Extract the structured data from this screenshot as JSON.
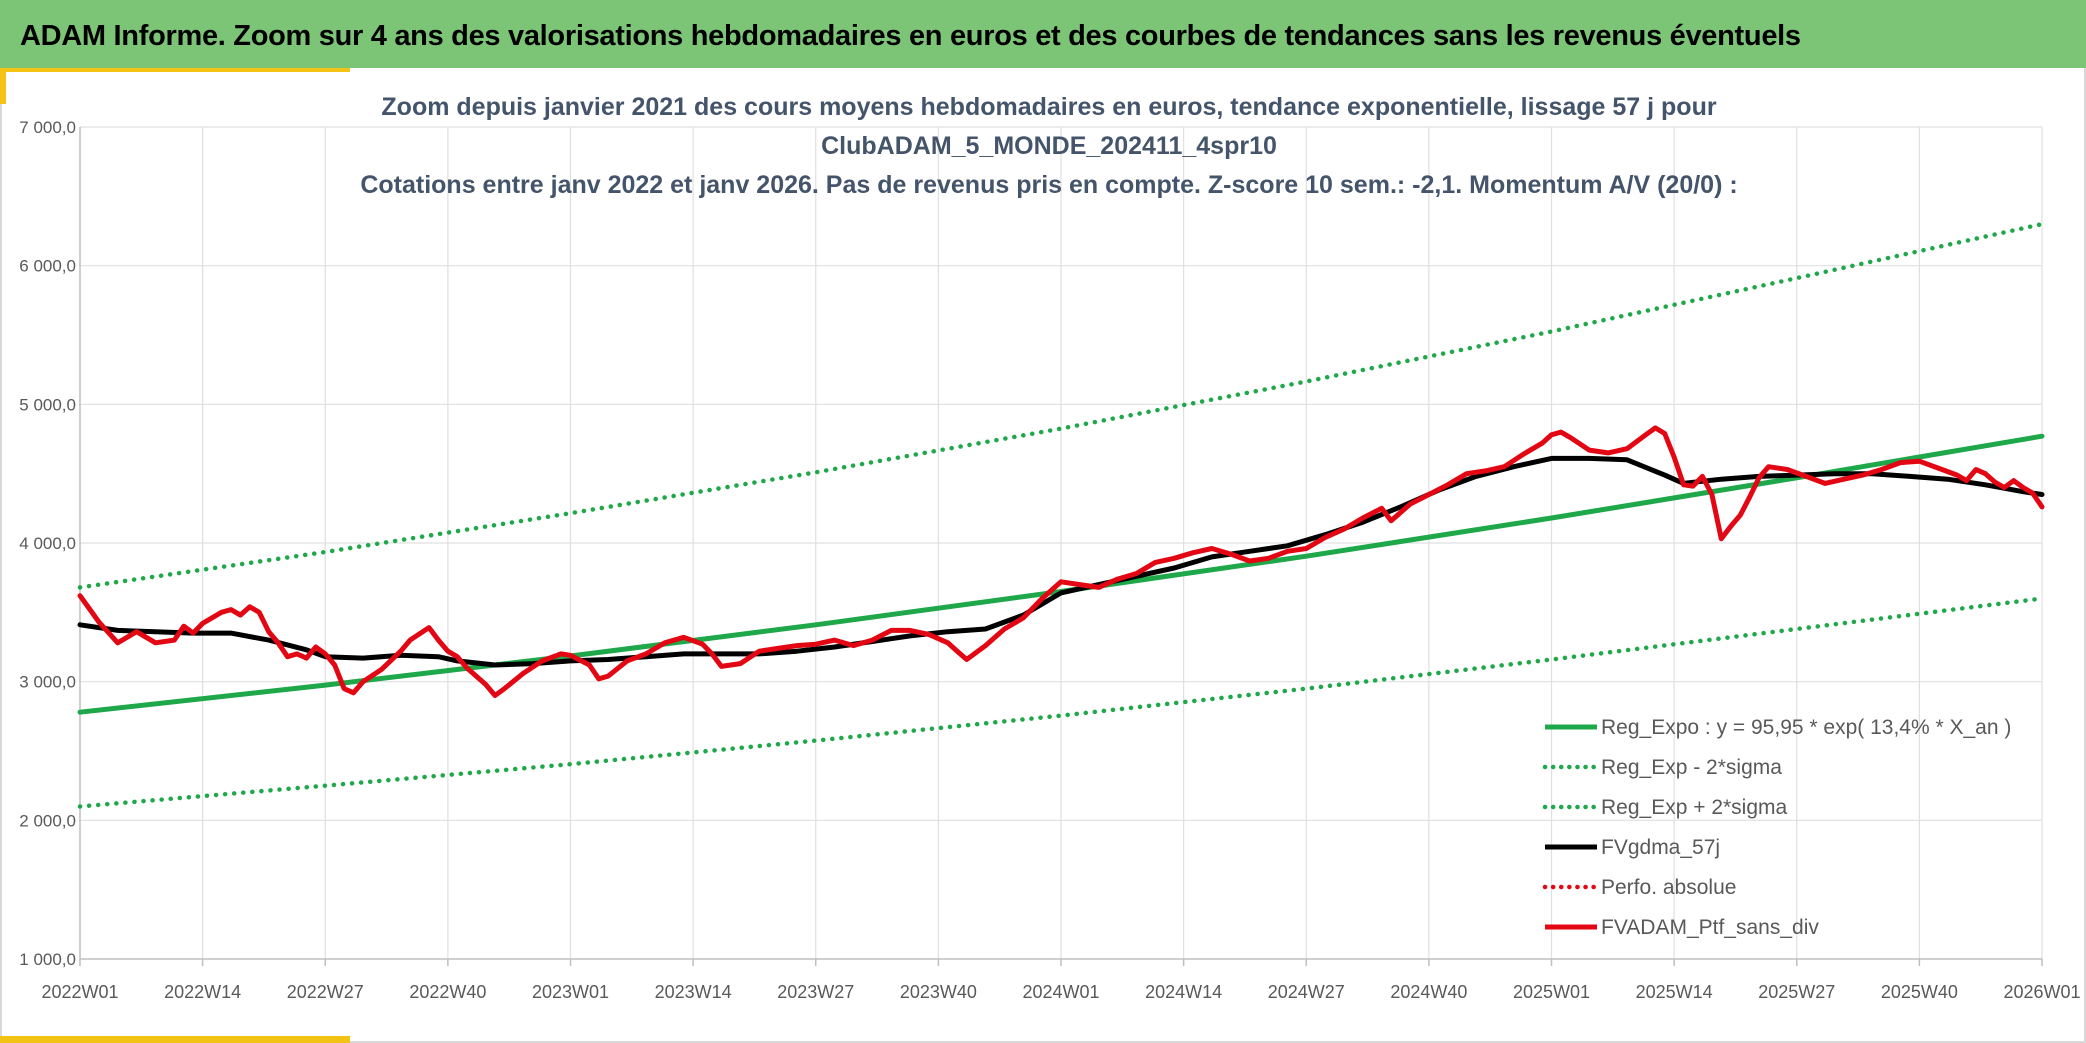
{
  "header": {
    "title": "ADAM Informe. Zoom sur 4 ans des valorisations hebdomadaires en euros et des courbes de tendances sans les revenus éventuels"
  },
  "colors": {
    "header_bg": "#7cc576",
    "accent": "#f2c314",
    "trend_green": "#1fa84a",
    "smooth_black": "#000000",
    "portfolio_red": "#e30613",
    "title_text": "#44546a",
    "grid": "#e0e0e0"
  },
  "chart_data": {
    "type": "line",
    "title_lines": [
      "Zoom depuis janvier 2021 des cours moyens hebdomadaires en euros, tendance exponentielle, lissage 57 j pour",
      "ClubADAM_5_MONDE_202411_4spr10",
      "Cotations entre janv 2022 et janv 2026. Pas de revenus pris en compte. Z-score 10 sem.: -2,1. Momentum A/V (20/0) :"
    ],
    "xlabel": "",
    "ylabel": "",
    "x_range_weeks": [
      0,
      208
    ],
    "ylim": [
      1000,
      7000
    ],
    "y_ticks": [
      1000,
      2000,
      3000,
      4000,
      5000,
      6000,
      7000
    ],
    "y_tick_labels": [
      "1 000,0",
      "2 000,0",
      "3 000,0",
      "4 000,0",
      "5 000,0",
      "6 000,0",
      "7 000,0"
    ],
    "x_tick_labels": [
      "2022W01",
      "2022W14",
      "2022W27",
      "2022W40",
      "2023W01",
      "2023W14",
      "2023W27",
      "2023W40",
      "2024W01",
      "2024W14",
      "2024W27",
      "2024W40",
      "2025W01",
      "2025W14",
      "2025W27",
      "2025W40",
      "2026W01"
    ],
    "x_tick_positions_weeks": [
      0,
      13,
      26,
      39,
      52,
      65,
      78,
      91,
      104,
      117,
      130,
      143,
      156,
      169,
      182,
      195,
      208
    ],
    "legend_position": "bottom-right",
    "series": [
      {
        "name": "Reg_Expo : y = 95,95 * exp( 13,4% *  X_an )",
        "style": "solid",
        "color": "#1fa84a",
        "points": [
          [
            0,
            2780
          ],
          [
            26,
            2975
          ],
          [
            52,
            3185
          ],
          [
            78,
            3410
          ],
          [
            104,
            3650
          ],
          [
            130,
            3905
          ],
          [
            156,
            4180
          ],
          [
            182,
            4470
          ],
          [
            208,
            4770
          ]
        ]
      },
      {
        "name": "Reg_Exp - 2*sigma",
        "style": "dotted",
        "color": "#1fa84a",
        "points": [
          [
            0,
            2100
          ],
          [
            26,
            2250
          ],
          [
            52,
            2405
          ],
          [
            78,
            2575
          ],
          [
            104,
            2755
          ],
          [
            130,
            2950
          ],
          [
            156,
            3160
          ],
          [
            182,
            3380
          ],
          [
            208,
            3600
          ]
        ]
      },
      {
        "name": "Reg_Exp + 2*sigma",
        "style": "dotted",
        "color": "#1fa84a",
        "points": [
          [
            0,
            3680
          ],
          [
            26,
            3935
          ],
          [
            52,
            4215
          ],
          [
            78,
            4510
          ],
          [
            104,
            4825
          ],
          [
            130,
            5165
          ],
          [
            156,
            5525
          ],
          [
            182,
            5910
          ],
          [
            208,
            6300
          ]
        ]
      },
      {
        "name": "FVgdma_57j",
        "style": "solid",
        "color": "#000000",
        "points": [
          [
            0,
            3410
          ],
          [
            4,
            3370
          ],
          [
            8,
            3360
          ],
          [
            12,
            3350
          ],
          [
            16,
            3350
          ],
          [
            20,
            3300
          ],
          [
            24,
            3230
          ],
          [
            26,
            3180
          ],
          [
            30,
            3170
          ],
          [
            34,
            3190
          ],
          [
            38,
            3180
          ],
          [
            40,
            3150
          ],
          [
            44,
            3120
          ],
          [
            48,
            3130
          ],
          [
            52,
            3150
          ],
          [
            56,
            3160
          ],
          [
            60,
            3180
          ],
          [
            64,
            3200
          ],
          [
            68,
            3200
          ],
          [
            72,
            3200
          ],
          [
            76,
            3220
          ],
          [
            80,
            3250
          ],
          [
            84,
            3290
          ],
          [
            88,
            3330
          ],
          [
            92,
            3360
          ],
          [
            96,
            3380
          ],
          [
            100,
            3480
          ],
          [
            104,
            3640
          ],
          [
            108,
            3700
          ],
          [
            112,
            3760
          ],
          [
            116,
            3820
          ],
          [
            120,
            3900
          ],
          [
            124,
            3940
          ],
          [
            128,
            3980
          ],
          [
            132,
            4060
          ],
          [
            136,
            4150
          ],
          [
            140,
            4260
          ],
          [
            144,
            4380
          ],
          [
            148,
            4480
          ],
          [
            152,
            4550
          ],
          [
            156,
            4610
          ],
          [
            160,
            4610
          ],
          [
            164,
            4600
          ],
          [
            168,
            4490
          ],
          [
            170,
            4430
          ],
          [
            174,
            4460
          ],
          [
            178,
            4480
          ],
          [
            182,
            4490
          ],
          [
            186,
            4500
          ],
          [
            190,
            4500
          ],
          [
            194,
            4480
          ],
          [
            198,
            4460
          ],
          [
            202,
            4420
          ],
          [
            206,
            4370
          ],
          [
            208,
            4350
          ]
        ]
      },
      {
        "name": "Perfo. absolue",
        "style": "dotted",
        "color": "#e30613",
        "points": []
      },
      {
        "name": "FVADAM_Ptf_sans_div",
        "style": "solid",
        "color": "#e30613",
        "points": [
          [
            0,
            3620
          ],
          [
            2,
            3430
          ],
          [
            4,
            3280
          ],
          [
            6,
            3360
          ],
          [
            8,
            3280
          ],
          [
            10,
            3300
          ],
          [
            11,
            3400
          ],
          [
            12,
            3350
          ],
          [
            13,
            3420
          ],
          [
            15,
            3500
          ],
          [
            16,
            3520
          ],
          [
            17,
            3480
          ],
          [
            18,
            3540
          ],
          [
            19,
            3500
          ],
          [
            20,
            3360
          ],
          [
            21,
            3280
          ],
          [
            22,
            3180
          ],
          [
            23,
            3200
          ],
          [
            24,
            3170
          ],
          [
            25,
            3250
          ],
          [
            26,
            3200
          ],
          [
            27,
            3120
          ],
          [
            28,
            2950
          ],
          [
            29,
            2920
          ],
          [
            30,
            3000
          ],
          [
            32,
            3090
          ],
          [
            34,
            3220
          ],
          [
            35,
            3300
          ],
          [
            37,
            3390
          ],
          [
            38,
            3300
          ],
          [
            39,
            3220
          ],
          [
            40,
            3180
          ],
          [
            41,
            3100
          ],
          [
            42,
            3040
          ],
          [
            43,
            2980
          ],
          [
            44,
            2900
          ],
          [
            45,
            2950
          ],
          [
            47,
            3060
          ],
          [
            49,
            3150
          ],
          [
            51,
            3200
          ],
          [
            52,
            3190
          ],
          [
            54,
            3120
          ],
          [
            55,
            3020
          ],
          [
            56,
            3040
          ],
          [
            58,
            3150
          ],
          [
            60,
            3200
          ],
          [
            62,
            3280
          ],
          [
            64,
            3320
          ],
          [
            66,
            3270
          ],
          [
            67,
            3200
          ],
          [
            68,
            3110
          ],
          [
            70,
            3130
          ],
          [
            72,
            3220
          ],
          [
            74,
            3240
          ],
          [
            76,
            3260
          ],
          [
            78,
            3270
          ],
          [
            80,
            3300
          ],
          [
            82,
            3260
          ],
          [
            84,
            3300
          ],
          [
            86,
            3370
          ],
          [
            88,
            3370
          ],
          [
            90,
            3340
          ],
          [
            92,
            3280
          ],
          [
            93,
            3220
          ],
          [
            94,
            3160
          ],
          [
            96,
            3260
          ],
          [
            98,
            3380
          ],
          [
            100,
            3460
          ],
          [
            102,
            3600
          ],
          [
            104,
            3720
          ],
          [
            106,
            3700
          ],
          [
            108,
            3680
          ],
          [
            110,
            3740
          ],
          [
            112,
            3780
          ],
          [
            114,
            3860
          ],
          [
            116,
            3890
          ],
          [
            118,
            3930
          ],
          [
            120,
            3960
          ],
          [
            122,
            3920
          ],
          [
            124,
            3870
          ],
          [
            126,
            3890
          ],
          [
            128,
            3940
          ],
          [
            130,
            3960
          ],
          [
            132,
            4040
          ],
          [
            134,
            4100
          ],
          [
            136,
            4180
          ],
          [
            138,
            4250
          ],
          [
            139,
            4160
          ],
          [
            141,
            4280
          ],
          [
            143,
            4350
          ],
          [
            145,
            4420
          ],
          [
            147,
            4500
          ],
          [
            149,
            4520
          ],
          [
            151,
            4550
          ],
          [
            153,
            4640
          ],
          [
            155,
            4720
          ],
          [
            156,
            4780
          ],
          [
            157,
            4800
          ],
          [
            158,
            4760
          ],
          [
            160,
            4670
          ],
          [
            162,
            4650
          ],
          [
            164,
            4680
          ],
          [
            166,
            4780
          ],
          [
            167,
            4830
          ],
          [
            168,
            4790
          ],
          [
            169,
            4620
          ],
          [
            170,
            4420
          ],
          [
            171,
            4410
          ],
          [
            172,
            4480
          ],
          [
            173,
            4350
          ],
          [
            174,
            4030
          ],
          [
            175,
            4120
          ],
          [
            176,
            4200
          ],
          [
            177,
            4330
          ],
          [
            178,
            4470
          ],
          [
            179,
            4550
          ],
          [
            181,
            4530
          ],
          [
            183,
            4480
          ],
          [
            185,
            4430
          ],
          [
            187,
            4460
          ],
          [
            189,
            4490
          ],
          [
            191,
            4530
          ],
          [
            193,
            4580
          ],
          [
            195,
            4590
          ],
          [
            197,
            4540
          ],
          [
            199,
            4490
          ],
          [
            200,
            4450
          ],
          [
            201,
            4530
          ],
          [
            202,
            4500
          ],
          [
            203,
            4440
          ],
          [
            204,
            4400
          ],
          [
            205,
            4450
          ],
          [
            206,
            4400
          ],
          [
            207,
            4360
          ],
          [
            208,
            4260
          ]
        ]
      }
    ]
  }
}
